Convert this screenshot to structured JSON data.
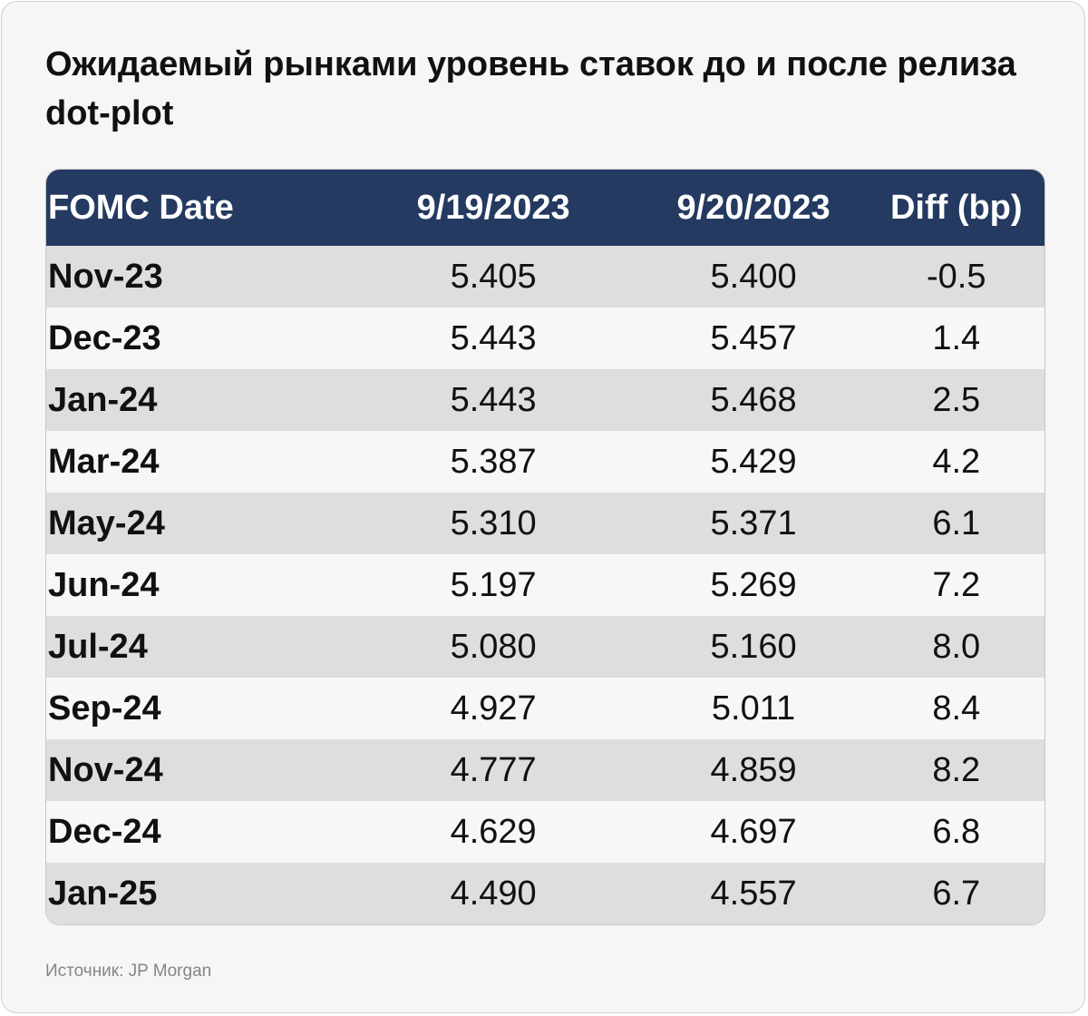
{
  "title": "Ожидаемый рынками уровень ставок до и после релиза dot-plot",
  "source": "Источник: JP Morgan",
  "colors": {
    "header_bg": "#253a61",
    "row_odd": "#dedede",
    "row_even": "#f7f7f7"
  },
  "chart_data": {
    "type": "table",
    "title": "Ожидаемый рынками уровень ставок до и после релиза dot-plot",
    "columns": [
      "FOMC Date",
      "9/19/2023",
      "9/20/2023",
      "Diff (bp)"
    ],
    "rows": [
      [
        "Nov-23",
        "5.405",
        "5.400",
        "-0.5"
      ],
      [
        "Dec-23",
        "5.443",
        "5.457",
        "1.4"
      ],
      [
        "Jan-24",
        "5.443",
        "5.468",
        "2.5"
      ],
      [
        "Mar-24",
        "5.387",
        "5.429",
        "4.2"
      ],
      [
        "May-24",
        "5.310",
        "5.371",
        "6.1"
      ],
      [
        "Jun-24",
        "5.197",
        "5.269",
        "7.2"
      ],
      [
        "Jul-24",
        "5.080",
        "5.160",
        "8.0"
      ],
      [
        "Sep-24",
        "4.927",
        "5.011",
        "8.4"
      ],
      [
        "Nov-24",
        "4.777",
        "4.859",
        "8.2"
      ],
      [
        "Dec-24",
        "4.629",
        "4.697",
        "6.8"
      ],
      [
        "Jan-25",
        "4.490",
        "4.557",
        "6.7"
      ]
    ]
  }
}
